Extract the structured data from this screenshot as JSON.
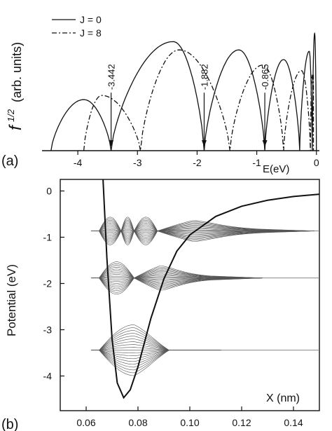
{
  "panel_a": {
    "panel_label": "(a)",
    "y_label_main": "f",
    "y_label_exp": "1/2",
    "y_label_units": "(arb. units)",
    "x_label": "E(eV)"
  },
  "panel_b": {
    "panel_label": "(b)",
    "y_label": "Potential (eV)",
    "x_label": "X (nm)"
  },
  "chart_data": [
    {
      "type": "line",
      "title": "",
      "xlabel": "E(eV)",
      "ylabel": "f^(1/2) (arb. units)",
      "xlim": [
        -4.6,
        0.05
      ],
      "ylim": [
        0,
        1.0
      ],
      "xticks": [
        -4,
        -3,
        -2,
        -1,
        0
      ],
      "legend": {
        "placement": "top-left",
        "entries": [
          "J = 0",
          "J = 8"
        ]
      },
      "series": [
        {
          "name": "J = 0",
          "style": "solid",
          "nodes": [
            -4.45,
            -3.442,
            -1.882,
            -0.865,
            -0.28,
            -0.07,
            0.0
          ],
          "peak_heights": [
            0.4,
            0.8,
            0.74,
            0.66,
            0.72,
            0.85
          ],
          "x": [
            -4.45,
            -4.2,
            -3.9,
            -3.6,
            -3.442,
            -3.2,
            -2.8,
            -2.4,
            -2.0,
            -1.882,
            -1.7,
            -1.5,
            -1.3,
            -1.1,
            -0.865,
            -0.7,
            -0.55,
            -0.4,
            -0.28,
            -0.2,
            -0.12,
            -0.07,
            -0.03,
            0.0
          ],
          "y": [
            0.0,
            0.28,
            0.37,
            0.2,
            0.0,
            0.55,
            0.78,
            0.79,
            0.48,
            0.0,
            0.45,
            0.66,
            0.73,
            0.48,
            0.0,
            0.52,
            0.66,
            0.57,
            0.0,
            0.62,
            0.72,
            0.0,
            0.85,
            0.0
          ]
        },
        {
          "name": "J = 8",
          "style": "dash-dot",
          "nodes": [
            -3.9,
            -2.95,
            -1.45,
            -0.55,
            -0.1
          ],
          "x": [
            -3.9,
            -3.6,
            -3.3,
            -2.95,
            -2.6,
            -2.3,
            -2.0,
            -1.7,
            -1.45,
            -1.2,
            -0.9,
            -0.55,
            -0.4,
            -0.25,
            -0.1,
            -0.05
          ],
          "y": [
            0.0,
            0.4,
            0.38,
            0.0,
            0.6,
            0.73,
            0.66,
            0.32,
            0.0,
            0.53,
            0.62,
            0.0,
            0.52,
            0.58,
            0.0,
            0.55
          ]
        }
      ],
      "annotations": [
        {
          "text": "-3.442",
          "x": -3.442
        },
        {
          "text": "-1.882",
          "x": -1.882
        },
        {
          "text": "-0.865",
          "x": -0.865
        }
      ]
    },
    {
      "type": "line",
      "title": "",
      "xlabel": "X (nm)",
      "ylabel": "Potential (eV)",
      "xlim": [
        0.05,
        0.15
      ],
      "ylim": [
        -4.75,
        0.25
      ],
      "xticks": [
        0.06,
        0.08,
        0.1,
        0.12,
        0.14
      ],
      "xtick_labels": [
        "0.06",
        "0.08",
        "0.10",
        "0.12",
        "0.14"
      ],
      "yticks": [
        0,
        -1,
        -2,
        -3,
        -4
      ],
      "potential_curve": {
        "x": [
          0.0665,
          0.068,
          0.07,
          0.072,
          0.0745,
          0.077,
          0.08,
          0.085,
          0.09,
          0.095,
          0.1,
          0.11,
          0.12,
          0.13,
          0.14,
          0.15
        ],
        "y": [
          0.25,
          -1.45,
          -3.2,
          -4.15,
          -4.47,
          -4.3,
          -3.8,
          -2.75,
          -1.9,
          -1.3,
          -0.95,
          -0.55,
          -0.33,
          -0.2,
          -0.12,
          -0.07
        ]
      },
      "energy_levels": [
        {
          "energy": -0.865,
          "nodes": [
            0.0735,
            0.0785,
            0.0875
          ],
          "packet_end": 0.128
        },
        {
          "energy": -1.882,
          "nodes": [
            0.0785
          ],
          "packet_end": 0.108
        },
        {
          "energy": -3.442,
          "nodes": [],
          "packet_end": 0.092
        }
      ],
      "wavepacket_x_start": 0.062
    }
  ]
}
